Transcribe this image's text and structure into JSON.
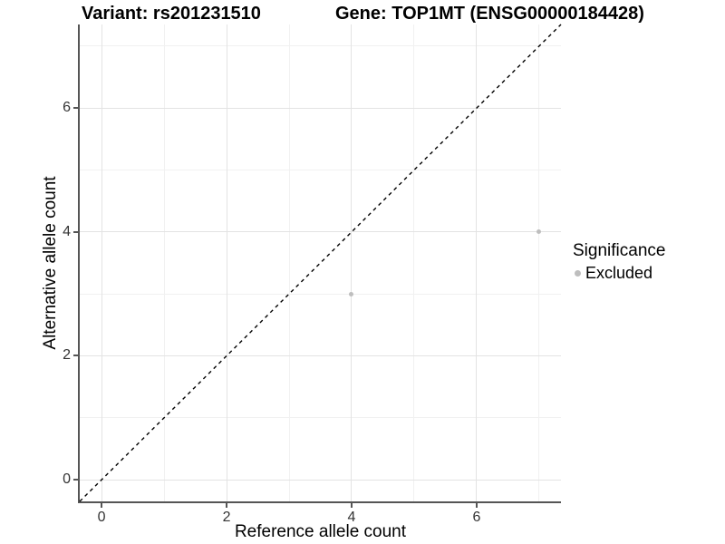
{
  "chart_data": {
    "type": "scatter",
    "title_left": "Variant: rs201231510",
    "title_right": "Gene: TOP1MT (ENSG00000184428)",
    "xlabel": "Reference allele count",
    "ylabel": "Alternative allele count",
    "x_ticks": [
      0,
      2,
      4,
      6
    ],
    "y_ticks": [
      0,
      2,
      4,
      6
    ],
    "x_minor": [
      1,
      3,
      5,
      7
    ],
    "y_minor": [
      1,
      3,
      5,
      7
    ],
    "x_range": [
      -0.35,
      7.35
    ],
    "y_range": [
      -0.35,
      7.35
    ],
    "grid": true,
    "series": [
      {
        "name": "Excluded",
        "color": "#bebebe",
        "points": [
          {
            "x": 4,
            "y": 3
          },
          {
            "x": 7,
            "y": 4
          }
        ]
      }
    ],
    "reference_line": {
      "kind": "identity",
      "style": "dashed",
      "color": "#000000"
    },
    "legend": {
      "position": "right",
      "title": "Significance",
      "items": [
        {
          "label": "Excluded",
          "color": "#bebebe"
        }
      ]
    }
  },
  "colors": {
    "axis": "#555555",
    "grid_major": "#e3e3e3",
    "grid_minor": "#f1f1f1",
    "point": "#bebebe",
    "tick_text": "#333333",
    "title_text": "#000000"
  }
}
